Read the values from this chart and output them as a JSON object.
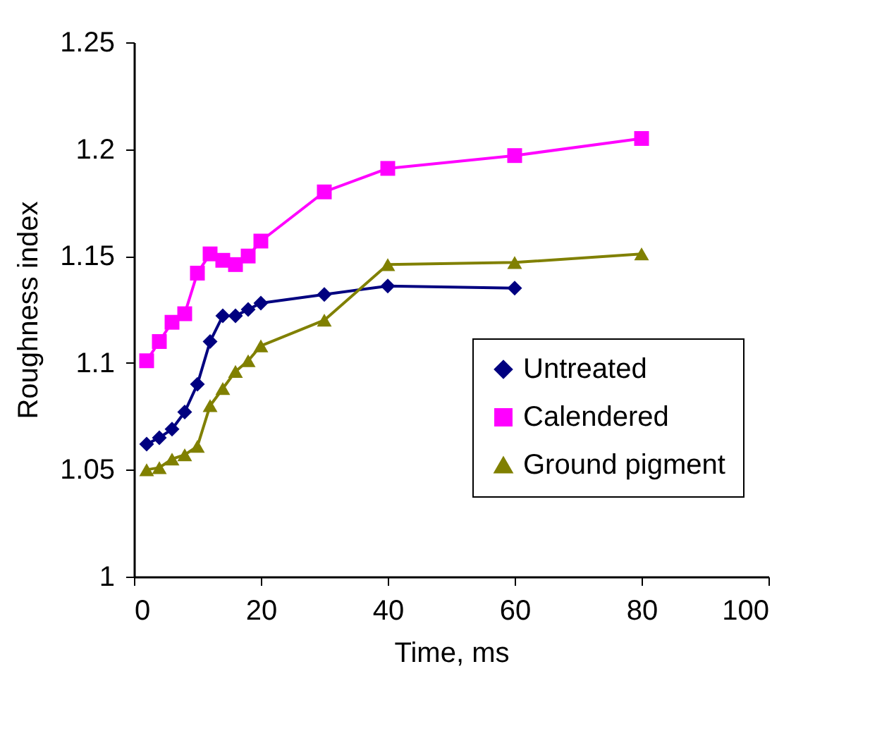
{
  "chart_data": {
    "type": "line",
    "xlabel": "Time, ms",
    "ylabel": "Roughness index",
    "xlim": [
      0,
      100
    ],
    "xticks": [
      0,
      20,
      40,
      60,
      80,
      100
    ],
    "ylim": [
      1,
      1.25
    ],
    "yticks": [
      1,
      1.05,
      1.1,
      1.15,
      1.2,
      1.25
    ],
    "grid": false,
    "legend": "bottom right",
    "line_style": "solid",
    "series": [
      {
        "name": "Untreated",
        "color": "#000080",
        "marker": "diamond",
        "x": [
          2,
          4,
          6,
          8,
          10,
          12,
          14,
          16,
          18,
          20,
          30,
          40,
          60
        ],
        "values": [
          1.062,
          1.065,
          1.069,
          1.077,
          1.09,
          1.11,
          1.122,
          1.122,
          1.125,
          1.128,
          1.132,
          1.136,
          1.135
        ]
      },
      {
        "name": "Calendered",
        "color": "#ff00ff",
        "marker": "square",
        "x": [
          2,
          4,
          6,
          8,
          10,
          12,
          14,
          16,
          18,
          20,
          30,
          40,
          60,
          80
        ],
        "values": [
          1.101,
          1.11,
          1.119,
          1.123,
          1.142,
          1.151,
          1.148,
          1.146,
          1.15,
          1.157,
          1.18,
          1.191,
          1.197,
          1.205
        ]
      },
      {
        "name": "Ground pigment",
        "color": "#808000",
        "marker": "triangle",
        "x": [
          2,
          4,
          6,
          8,
          10,
          12,
          14,
          16,
          18,
          20,
          30,
          40,
          60,
          80
        ],
        "values": [
          1.05,
          1.051,
          1.055,
          1.057,
          1.061,
          1.08,
          1.088,
          1.096,
          1.101,
          1.108,
          1.12,
          1.146,
          1.147,
          1.151
        ]
      }
    ]
  }
}
